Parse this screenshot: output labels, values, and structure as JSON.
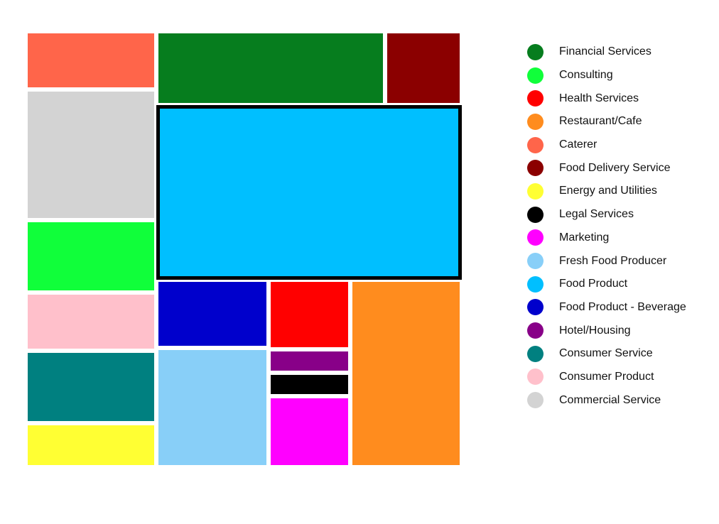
{
  "chart_data": {
    "type": "treemap",
    "legend_position": "right",
    "selected": "Food Product",
    "categories": [
      {
        "name": "Financial Services",
        "color": "#067D1E",
        "value": 310
      },
      {
        "name": "Consulting",
        "color": "#10FF3A",
        "value": 170
      },
      {
        "name": "Health Services",
        "color": "#FF0000",
        "value": 100
      },
      {
        "name": "Restaurant/Cafe",
        "color": "#FF8C1E",
        "value": 390
      },
      {
        "name": "Caterer",
        "color": "#FF654A",
        "value": 135
      },
      {
        "name": "Food Delivery Service",
        "color": "#8B0000",
        "value": 100
      },
      {
        "name": "Energy and Utilities",
        "color": "#FFFF33",
        "value": 100
      },
      {
        "name": "Legal Services",
        "color": "#000000",
        "value": 30
      },
      {
        "name": "Marketing",
        "color": "#FF00FF",
        "value": 100
      },
      {
        "name": "Fresh Food Producer",
        "color": "#88CFF8",
        "value": 260
      },
      {
        "name": "Food Product",
        "color": "#00BFFF",
        "value": 1030
      },
      {
        "name": "Food Product - Beverage",
        "color": "#0000CC",
        "value": 140
      },
      {
        "name": "Hotel/Housing",
        "color": "#880088",
        "value": 30
      },
      {
        "name": "Consumer Service",
        "color": "#008080",
        "value": 170
      },
      {
        "name": "Consumer Product",
        "color": "#FFC0CB",
        "value": 140
      },
      {
        "name": "Commercial Service",
        "color": "#D3D3D3",
        "value": 320
      }
    ]
  }
}
